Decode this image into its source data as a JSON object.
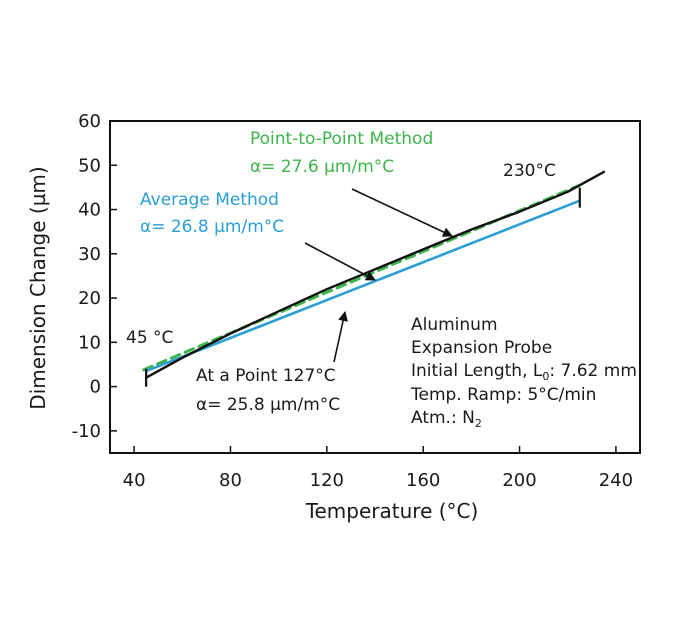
{
  "chart_data": {
    "type": "line",
    "title": "",
    "xlabel": "Temperature (°C)",
    "ylabel": "Dimension Change (µm)",
    "xlim": [
      30,
      250
    ],
    "ylim": [
      -15,
      60
    ],
    "x_ticks": [
      40,
      80,
      120,
      160,
      200,
      240
    ],
    "y_ticks": [
      60,
      50,
      40,
      30,
      20,
      10,
      0,
      -10
    ],
    "grid": false,
    "colors": {
      "measured": "#111111",
      "average": "#2a9fd6",
      "point_to_point": "#3cb54a"
    },
    "series": [
      {
        "key": "measured",
        "x": [
          45,
          60,
          80,
          100,
          120,
          140,
          160,
          180,
          200,
          220,
          235
        ],
        "y": [
          2,
          6.5,
          12,
          17,
          22,
          26.5,
          31,
          35.5,
          39.5,
          44,
          48.5
        ]
      },
      {
        "key": "average",
        "x": [
          45,
          225
        ],
        "y": [
          3.5,
          42
        ]
      },
      {
        "key": "point_to_point",
        "x": [
          44,
          225
        ],
        "y": [
          3.8,
          45.5
        ]
      }
    ],
    "annotations": {
      "ptp_title": "Point-to-Point Method",
      "ptp_value": "α= 27.6 µm/m°C",
      "avg_title": "Average Method",
      "avg_value": "α= 26.8 µm/m°C",
      "pt_title": "At a Point 127°C",
      "pt_value": "α= 25.8 µm/m°C",
      "t_low": "45 °C",
      "t_high": "230°C",
      "info_1": "Aluminum",
      "info_2": "Expansion Probe",
      "info_3a": "Initial Length, L",
      "info_3sub": "0",
      "info_3b": ": 7.62 mm",
      "info_4": "Temp. Ramp: 5°C/min",
      "info_5a": "Atm.: N",
      "info_5sub": "2"
    }
  }
}
